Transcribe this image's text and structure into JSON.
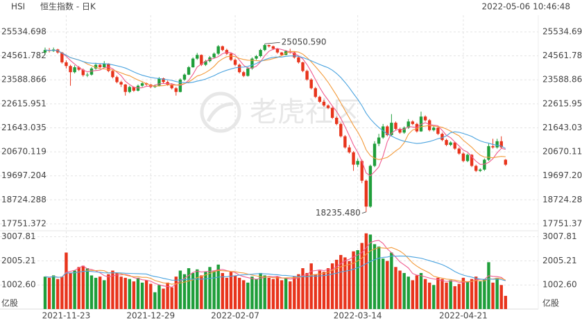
{
  "chart_data": {
    "type": "candlestick",
    "symbol": "HSI",
    "name": "恒生指数 - 日K",
    "timestamp": "2022-05-06 10:46:48",
    "watermark": "老虎社区",
    "volume_unit": "亿股",
    "up_color": "#1f9e3a",
    "down_color": "#e8341c",
    "ma_colors": [
      "#ef5b8f",
      "#f39a3a",
      "#4aa3df"
    ],
    "ylim": [
      17554,
      25703
    ],
    "yticks": [
      25534.698,
      24561.782,
      23588.866,
      22615.951,
      21643.035,
      20670.119,
      19697.204,
      18724.288,
      17751.372
    ],
    "vlim": [
      0,
      3200
    ],
    "vticks": [
      3007.81,
      2005.21,
      {
        "value": 1002.6,
        "label": "1002.60"
      }
    ],
    "annotations": [
      {
        "index": 52,
        "value": 25050.59,
        "label": "25050.590"
      },
      {
        "index": 76,
        "value": 18235.48,
        "label": "18235.480"
      }
    ],
    "categories": [
      null,
      null,
      null,
      null,
      null,
      "2021-11-23",
      null,
      null,
      null,
      null,
      null,
      null,
      null,
      null,
      null,
      null,
      null,
      null,
      null,
      null,
      null,
      null,
      null,
      null,
      null,
      "2021-12-29",
      null,
      null,
      null,
      null,
      null,
      null,
      null,
      null,
      null,
      null,
      null,
      null,
      null,
      null,
      null,
      null,
      null,
      null,
      null,
      "2022-02-07",
      null,
      null,
      null,
      null,
      null,
      null,
      null,
      null,
      null,
      null,
      null,
      null,
      null,
      null,
      null,
      null,
      null,
      null,
      null,
      null,
      null,
      null,
      null,
      null,
      null,
      null,
      null,
      null,
      "2022-03-14",
      null,
      null,
      null,
      null,
      null,
      null,
      null,
      null,
      null,
      null,
      null,
      null,
      null,
      null,
      null,
      null,
      null,
      null,
      null,
      null,
      null,
      null,
      null,
      null,
      "2022-04-21",
      null,
      null,
      null,
      null,
      null,
      null,
      null,
      null,
      null,
      null
    ],
    "ohlc": [
      [
        24700,
        24900,
        24650,
        24800
      ],
      [
        24800,
        24880,
        24700,
        24760
      ],
      [
        24760,
        24900,
        24720,
        24820
      ],
      [
        24820,
        24850,
        24650,
        24700
      ],
      [
        24700,
        24720,
        24250,
        24300
      ],
      [
        24300,
        24380,
        24050,
        24150
      ],
      [
        24150,
        24200,
        23350,
        23900
      ],
      [
        23900,
        24180,
        23850,
        24100
      ],
      [
        24100,
        24150,
        23950,
        24000
      ],
      [
        24000,
        24050,
        23720,
        23780
      ],
      [
        23780,
        23880,
        23700,
        23800
      ],
      [
        23800,
        24100,
        23760,
        24050
      ],
      [
        24050,
        24280,
        24000,
        24200
      ],
      [
        24200,
        24250,
        24050,
        24100
      ],
      [
        24100,
        24350,
        24080,
        24250
      ],
      [
        24250,
        24260,
        23900,
        23950
      ],
      [
        23950,
        24000,
        23650,
        23700
      ],
      [
        23700,
        23760,
        23450,
        23500
      ],
      [
        23500,
        23550,
        23300,
        23400
      ],
      [
        23400,
        23420,
        22950,
        23100
      ],
      [
        23100,
        23350,
        23050,
        23300
      ],
      [
        23300,
        23320,
        23100,
        23150
      ],
      [
        23150,
        23400,
        23120,
        23350
      ],
      [
        23350,
        23500,
        23300,
        23450
      ],
      [
        23450,
        23480,
        23350,
        23400
      ],
      [
        23400,
        23420,
        23250,
        23300
      ],
      [
        23300,
        23400,
        23260,
        23350
      ],
      [
        23350,
        23700,
        23320,
        23650
      ],
      [
        23650,
        23680,
        23450,
        23500
      ],
      [
        23500,
        23560,
        23350,
        23400
      ],
      [
        23400,
        23450,
        23200,
        23250
      ],
      [
        23250,
        23300,
        22950,
        23100
      ],
      [
        23100,
        23650,
        23080,
        23600
      ],
      [
        23600,
        23850,
        23550,
        23800
      ],
      [
        23800,
        24150,
        23780,
        24100
      ],
      [
        24100,
        24500,
        24080,
        24450
      ],
      [
        24450,
        24680,
        24400,
        24600
      ],
      [
        24600,
        24620,
        24150,
        24200
      ],
      [
        24200,
        24400,
        24150,
        24350
      ],
      [
        24350,
        24550,
        24300,
        24500
      ],
      [
        24500,
        24700,
        24450,
        24650
      ],
      [
        24650,
        25000,
        24600,
        24950
      ],
      [
        24950,
        24980,
        24750,
        24800
      ],
      [
        24800,
        24850,
        24600,
        24650
      ],
      [
        24650,
        24680,
        24350,
        24400
      ],
      [
        24400,
        24450,
        24150,
        24200
      ],
      [
        24200,
        24250,
        23850,
        23900
      ],
      [
        23900,
        23950,
        23700,
        23750
      ],
      [
        23750,
        24100,
        23720,
        24050
      ],
      [
        24050,
        24500,
        24000,
        24450
      ],
      [
        24450,
        24600,
        24400,
        24550
      ],
      [
        24550,
        24850,
        24500,
        24800
      ],
      [
        24800,
        25050.59,
        24750,
        25000
      ],
      [
        25000,
        25020,
        24900,
        24950
      ],
      [
        24950,
        24980,
        24800,
        24850
      ],
      [
        24850,
        24880,
        24650,
        24700
      ],
      [
        24700,
        24720,
        24550,
        24600
      ],
      [
        24600,
        24800,
        24580,
        24750
      ],
      [
        24750,
        24850,
        24650,
        24700
      ],
      [
        24700,
        24720,
        24450,
        24500
      ],
      [
        24500,
        24550,
        24250,
        24300
      ],
      [
        24300,
        24320,
        23900,
        23950
      ],
      [
        23950,
        24000,
        23550,
        23600
      ],
      [
        23600,
        23650,
        23200,
        23250
      ],
      [
        23250,
        23300,
        22850,
        22900
      ],
      [
        22900,
        22950,
        22650,
        22700
      ],
      [
        22700,
        22780,
        22500,
        22550
      ],
      [
        22550,
        22600,
        22400,
        22450
      ],
      [
        22450,
        22500,
        22000,
        22050
      ],
      [
        22050,
        22100,
        21750,
        21800
      ],
      [
        21800,
        21850,
        21250,
        21300
      ],
      [
        21300,
        21350,
        20800,
        20850
      ],
      [
        20850,
        20950,
        20600,
        20650
      ],
      [
        20650,
        20700,
        19900,
        20150
      ],
      [
        20150,
        20400,
        20050,
        20300
      ],
      [
        20300,
        20350,
        19400,
        19500
      ],
      [
        19500,
        19550,
        18235.48,
        18450
      ],
      [
        18450,
        20150,
        18400,
        20100
      ],
      [
        20100,
        21100,
        20050,
        21000
      ],
      [
        21000,
        21400,
        20900,
        21250
      ],
      [
        21250,
        21800,
        21200,
        21700
      ],
      [
        21700,
        21750,
        21300,
        21350
      ],
      [
        21350,
        22200,
        21300,
        21850
      ],
      [
        21850,
        21900,
        21550,
        21600
      ],
      [
        21600,
        21650,
        21400,
        21450
      ],
      [
        21450,
        21700,
        21400,
        21650
      ],
      [
        21650,
        22000,
        21600,
        21900
      ],
      [
        21900,
        21950,
        21750,
        21800
      ],
      [
        21800,
        21850,
        21450,
        21500
      ],
      [
        21500,
        22300,
        21480,
        22100
      ],
      [
        22100,
        22150,
        21900,
        21950
      ],
      [
        21950,
        22000,
        21500,
        21550
      ],
      [
        21550,
        21700,
        21500,
        21650
      ],
      [
        21650,
        21680,
        21350,
        21400
      ],
      [
        21400,
        21450,
        21100,
        21150
      ],
      [
        21150,
        21200,
        20900,
        20950
      ],
      [
        20950,
        21100,
        20900,
        21050
      ],
      [
        21050,
        21080,
        20750,
        20800
      ],
      [
        20800,
        20850,
        20550,
        20600
      ],
      [
        20600,
        20650,
        20250,
        20300
      ],
      [
        20300,
        20600,
        20250,
        20550
      ],
      [
        20550,
        20580,
        20050,
        20100
      ],
      [
        20100,
        20150,
        19850,
        19900
      ],
      [
        19900,
        20000,
        19850,
        19950
      ],
      [
        19950,
        20400,
        19900,
        20350
      ],
      [
        20350,
        21000,
        20300,
        20900
      ],
      [
        20900,
        21200,
        20800,
        20850
      ],
      [
        20850,
        21200,
        20800,
        21100
      ],
      [
        21100,
        21300,
        20800,
        20850
      ],
      [
        20350,
        20380,
        20100,
        20150
      ]
    ],
    "volume": [
      1350,
      1300,
      1400,
      1250,
      1350,
      2350,
      1500,
      1600,
      1750,
      1800,
      1700,
      1400,
      1300,
      1350,
      1200,
      1450,
      1600,
      1500,
      1350,
      1300,
      1250,
      1150,
      1300,
      1100,
      1200,
      1050,
      700,
      1000,
      850,
      1100,
      900,
      1350,
      1600,
      1450,
      1700,
      1500,
      1650,
      1400,
      1550,
      1750,
      1600,
      1850,
      1500,
      1300,
      1550,
      1400,
      1300,
      1200,
      1100,
      1350,
      1250,
      1500,
      1400,
      1300,
      1250,
      1350,
      1200,
      1300,
      1150,
      1350,
      1450,
      1700,
      1500,
      1900,
      1450,
      1600,
      1550,
      1700,
      1900,
      2050,
      2250,
      2150,
      2000,
      2400,
      2450,
      2750,
      3150,
      3100,
      2700,
      2600,
      2100,
      2000,
      2350,
      1750,
      1600,
      1500,
      1350,
      1200,
      1400,
      1500,
      1250,
      1100,
      1000,
      1300,
      1250,
      1100,
      1200,
      950,
      1050,
      1300,
      1150,
      1250,
      1350,
      1150,
      1250,
      1950,
      1100,
      1300,
      1000,
      550
    ]
  }
}
